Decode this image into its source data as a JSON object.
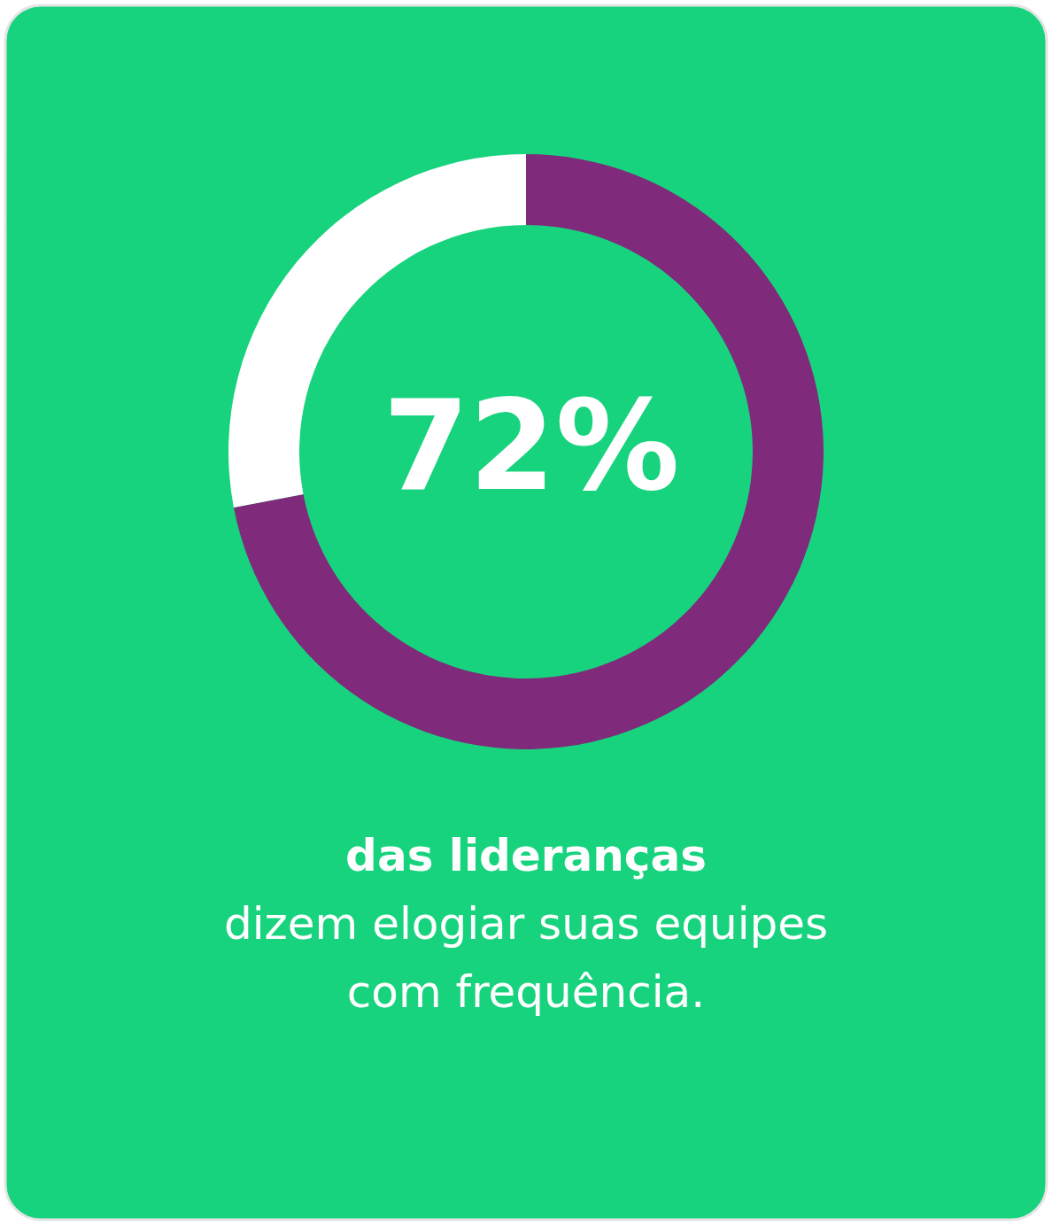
{
  "chart_data": {
    "type": "donut",
    "categories": [
      null,
      null
    ],
    "values": [
      72,
      28
    ],
    "colors": [
      "#7f2a7b",
      "#ffffff"
    ],
    "value_labels": [
      "72%",
      null
    ],
    "annotations": [
      "das lideranças",
      "dizem elogiar suas equipes",
      "com frequência."
    ]
  }
}
